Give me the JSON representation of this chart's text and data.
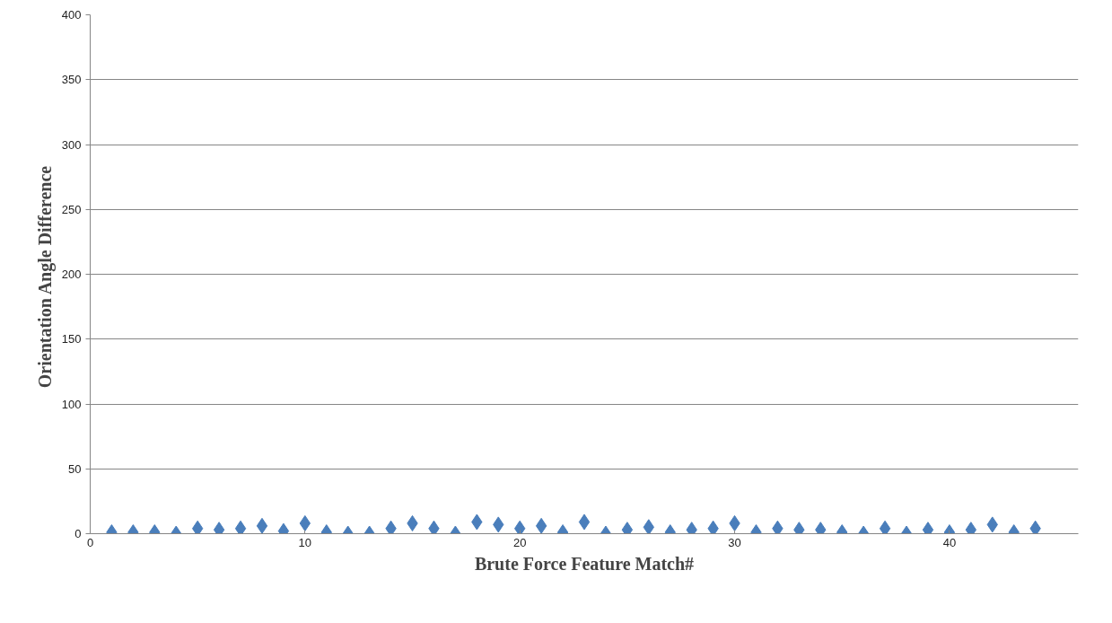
{
  "chart_data": {
    "type": "scatter",
    "xlabel": "Brute Force Feature Match#",
    "ylabel": "Orientation  Angle Difference",
    "x": [
      1,
      2,
      3,
      4,
      5,
      6,
      7,
      8,
      9,
      10,
      11,
      12,
      13,
      14,
      15,
      16,
      17,
      18,
      19,
      20,
      21,
      22,
      23,
      24,
      25,
      26,
      27,
      28,
      29,
      30,
      31,
      32,
      33,
      34,
      35,
      36,
      37,
      38,
      39,
      40,
      41,
      42,
      43,
      44
    ],
    "series": [
      {
        "color": "#4a7ebb",
        "values": [
          1,
          1,
          1,
          0,
          4,
          3,
          4,
          6,
          2,
          8,
          1,
          0,
          0,
          4,
          8,
          4,
          0,
          9,
          7,
          4,
          6,
          1,
          9,
          0,
          3,
          5,
          1,
          3,
          4,
          8,
          1,
          4,
          3,
          3,
          1,
          0,
          4,
          0,
          3,
          1,
          3,
          7,
          1,
          4
        ]
      }
    ],
    "marker": "diamond",
    "xlim": [
      0,
      46
    ],
    "ylim": [
      0,
      400
    ],
    "xticks": [
      0,
      10,
      20,
      30,
      40
    ],
    "yticks": [
      0,
      50,
      100,
      150,
      200,
      250,
      300,
      350,
      400
    ],
    "grid": "y"
  }
}
